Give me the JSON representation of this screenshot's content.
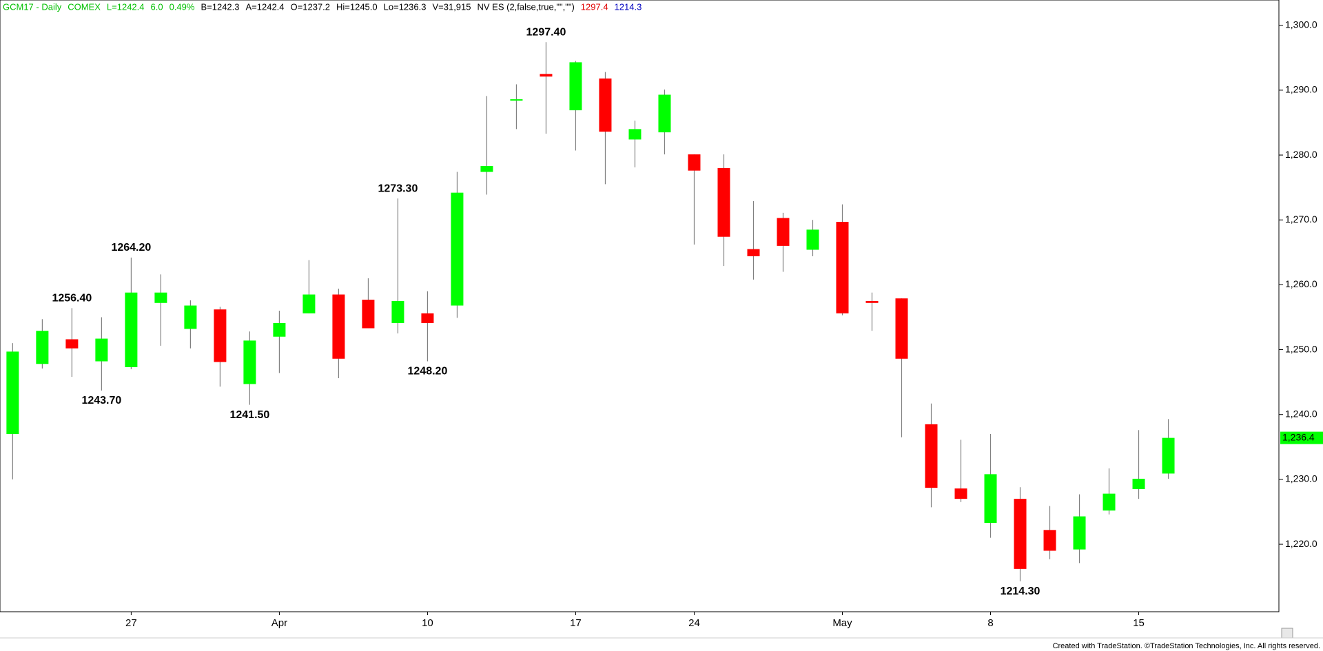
{
  "chart_data": {
    "type": "candlestick",
    "header": [
      {
        "text": "GCM17 - Daily",
        "color": "#00c000"
      },
      {
        "text": "COMEX",
        "color": "#00c000"
      },
      {
        "text": "L=1242.4",
        "color": "#00c000"
      },
      {
        "text": "6.0",
        "color": "#00c000"
      },
      {
        "text": "0.49%",
        "color": "#00c000"
      },
      {
        "text": "B=1242.3",
        "color": "#000000"
      },
      {
        "text": "A=1242.4",
        "color": "#000000"
      },
      {
        "text": "O=1237.2",
        "color": "#000000"
      },
      {
        "text": "Hi=1245.0",
        "color": "#000000"
      },
      {
        "text": "Lo=1236.3",
        "color": "#000000"
      },
      {
        "text": "V=31,915",
        "color": "#000000"
      },
      {
        "text": "NV ES (2,false,true,\"\",\"\")",
        "color": "#000000"
      },
      {
        "text": "1297.4",
        "color": "#e00000"
      },
      {
        "text": "1214.3",
        "color": "#0000c0"
      }
    ],
    "categories": [
      null,
      null,
      null,
      null,
      "27",
      null,
      null,
      null,
      null,
      "Apr",
      null,
      null,
      null,
      null,
      "10",
      null,
      null,
      null,
      null,
      "17",
      null,
      null,
      null,
      "24",
      null,
      null,
      null,
      null,
      "May",
      null,
      null,
      null,
      null,
      "8",
      null,
      null,
      null,
      null,
      "15",
      null
    ],
    "open": [
      1237.0,
      1247.8,
      1251.6,
      1248.2,
      1247.3,
      1257.2,
      1253.2,
      1256.2,
      1244.7,
      1252.0,
      1255.6,
      1258.5,
      1257.7,
      1254.1,
      1255.6,
      1256.8,
      1277.4,
      1288.4,
      1292.5,
      1286.9,
      1291.8,
      1282.4,
      1283.5,
      1280.1,
      1278.0,
      1265.5,
      1270.3,
      1265.4,
      1269.7,
      1257.5,
      1257.9,
      1238.5,
      1228.6,
      1223.3,
      1227.0,
      1222.2,
      1219.2,
      1225.2,
      1228.5,
      1230.9
    ],
    "high": [
      1251.0,
      1254.7,
      1256.4,
      1255.0,
      1264.2,
      1261.6,
      1257.6,
      1256.6,
      1252.8,
      1256.0,
      1263.8,
      1259.4,
      1261.0,
      1273.3,
      1259.0,
      1277.4,
      1289.1,
      1290.9,
      1297.4,
      1294.5,
      1292.8,
      1285.3,
      1290.1,
      1280.1,
      1280.1,
      1272.9,
      1271.1,
      1270.0,
      1272.4,
      1258.8,
      1257.9,
      1241.7,
      1236.1,
      1237.0,
      1228.8,
      1225.9,
      1227.7,
      1231.7,
      1237.6,
      1239.3
    ],
    "low": [
      1230.0,
      1247.1,
      1245.8,
      1243.7,
      1247.0,
      1250.6,
      1250.2,
      1244.3,
      1241.5,
      1246.4,
      1255.6,
      1245.6,
      1253.3,
      1252.5,
      1248.2,
      1254.9,
      1273.9,
      1284.0,
      1283.3,
      1280.7,
      1275.5,
      1278.1,
      1280.1,
      1266.2,
      1262.9,
      1260.8,
      1262.0,
      1264.4,
      1255.3,
      1252.9,
      1236.5,
      1225.7,
      1226.5,
      1221.0,
      1214.3,
      1217.7,
      1217.1,
      1224.6,
      1227.0,
      1230.1
    ],
    "close": [
      1249.7,
      1252.9,
      1250.2,
      1251.7,
      1258.8,
      1258.8,
      1256.8,
      1248.1,
      1251.4,
      1254.1,
      1258.5,
      1248.6,
      1253.3,
      1257.5,
      1254.1,
      1274.2,
      1278.3,
      1288.6,
      1292.1,
      1294.3,
      1283.6,
      1284.0,
      1289.3,
      1277.6,
      1267.4,
      1264.4,
      1266.0,
      1268.5,
      1255.6,
      1257.2,
      1248.6,
      1228.7,
      1227.0,
      1230.8,
      1216.2,
      1219.0,
      1224.3,
      1227.8,
      1230.1,
      1236.4
    ],
    "up_color": "#00ff00",
    "down_color": "#ff0000",
    "ylim": [
      1209.6,
      1303.9
    ],
    "yticks": [
      {
        "value": 1220,
        "label": "1,220.0"
      },
      {
        "value": 1230,
        "label": "1,230.0"
      },
      {
        "value": 1240,
        "label": "1,240.0"
      },
      {
        "value": 1250,
        "label": "1,250.0"
      },
      {
        "value": 1260,
        "label": "1,260.0"
      },
      {
        "value": 1270,
        "label": "1,270.0"
      },
      {
        "value": 1280,
        "label": "1,280.0"
      },
      {
        "value": 1290,
        "label": "1,290.0"
      },
      {
        "value": 1300,
        "label": "1,300.0"
      }
    ],
    "grid": false,
    "last_price": {
      "value": 1236.4,
      "label": "1,236.4"
    },
    "annotations": [
      {
        "value": 1256.4,
        "label": "1256.40"
      },
      {
        "value": 1264.2,
        "label": "1264.20"
      },
      {
        "value": 1243.7,
        "label": "1243.70"
      },
      {
        "value": 1241.5,
        "label": "1241.50"
      },
      {
        "value": 1273.3,
        "label": "1273.30"
      },
      {
        "value": 1248.2,
        "label": "1248.20"
      },
      {
        "value": 1297.4,
        "label": "1297.40"
      },
      {
        "value": 1214.3,
        "label": "1214.30"
      }
    ],
    "footer": "Created with TradeStation. ©TradeStation Technologies, Inc. All rights reserved."
  }
}
